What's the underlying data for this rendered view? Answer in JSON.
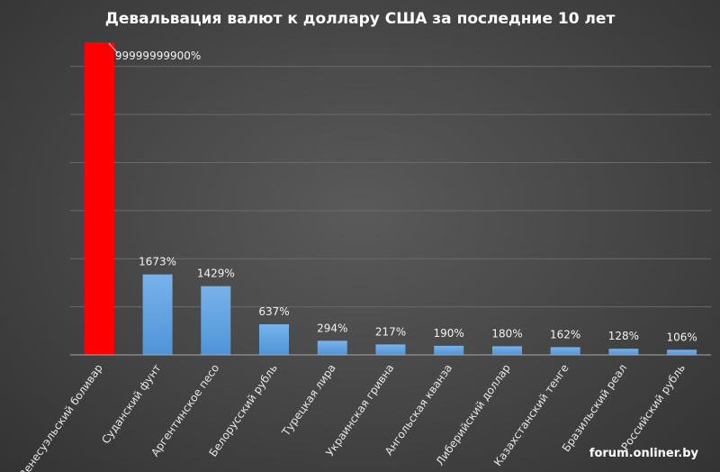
{
  "chart_data": {
    "type": "bar",
    "title": "Девальвация валют к доллару США за последние 10 лет",
    "categories": [
      "Венесуэльский боливар",
      "Суданский фунт",
      "Аргентинское песо",
      "Белорусский рубль",
      "Турецкая лира",
      "Украинская гривна",
      "Ангольская кванза",
      "Либерийский доллар",
      "Казахстанский тенге",
      "Бразильский реал",
      "Российский рубль"
    ],
    "values": [
      99999999900,
      1673,
      1429,
      637,
      294,
      217,
      190,
      180,
      162,
      128,
      106
    ],
    "data_labels": [
      "99999999900%",
      "1673%",
      "1429%",
      "637%",
      "294%",
      "217%",
      "190%",
      "180%",
      "162%",
      "128%",
      "106%"
    ],
    "ylim": [
      0,
      6500
    ],
    "truncated_bar_index": 0,
    "grid": true,
    "colors": {
      "highlight": "#ff0000",
      "bar": "#4f94d8",
      "bar_light": "#78b2ea"
    }
  },
  "watermark": "forum.onliner.by"
}
